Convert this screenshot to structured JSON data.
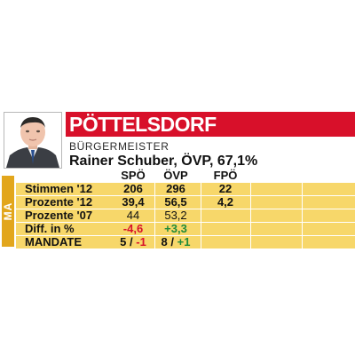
{
  "card": {
    "title": "PÖTTELSDORF",
    "role": "BÜRGERMEISTER",
    "mayor": "Rainer Schuber, ÖVP, 67,1%",
    "side_tab": "MA"
  },
  "columns": [
    "SPÖ",
    "ÖVP",
    "FPÖ"
  ],
  "rows": [
    {
      "label": "Stimmen '12",
      "values": [
        "206",
        "296",
        "22"
      ]
    },
    {
      "label": "Prozente '12",
      "values": [
        "39,4",
        "56,5",
        "4,2"
      ]
    },
    {
      "label": "Prozente '07",
      "values": [
        "44",
        "53,2",
        ""
      ]
    },
    {
      "label": "Diff. in %",
      "values": [
        "-4,6",
        "+3,3",
        ""
      ]
    },
    {
      "label": "MANDATE",
      "mandates": [
        {
          "seats": "5",
          "sep": "/",
          "change": "-1"
        },
        {
          "seats": "8",
          "sep": "/",
          "change": "+1"
        }
      ]
    }
  ],
  "colors": {
    "title_red": "#d8102a",
    "table_yellow": "#f7d76a",
    "tab_orange": "#e2a61c",
    "negative": "#d8102a",
    "positive": "#1f8a3a"
  }
}
